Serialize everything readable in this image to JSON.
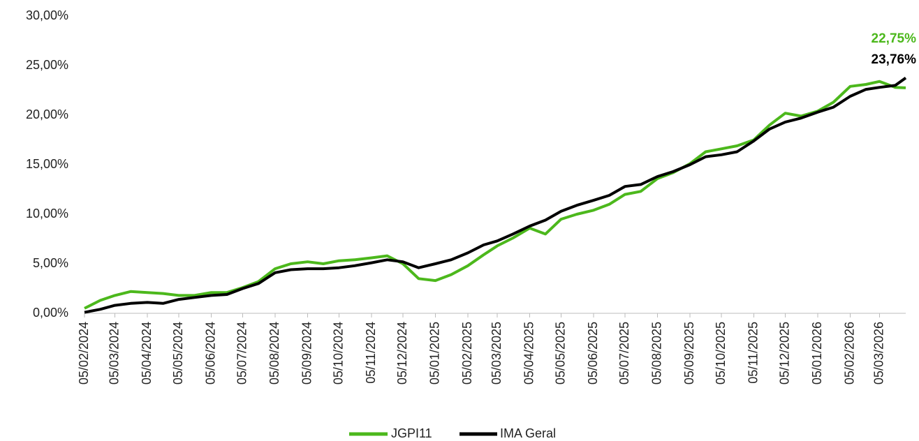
{
  "chart_data": {
    "type": "line",
    "x": [
      "05/02/2024",
      "20/02/2024",
      "05/03/2024",
      "20/03/2024",
      "05/04/2024",
      "20/04/2024",
      "05/05/2024",
      "20/05/2024",
      "05/06/2024",
      "20/06/2024",
      "05/07/2024",
      "20/07/2024",
      "05/08/2024",
      "20/08/2024",
      "05/09/2024",
      "20/09/2024",
      "05/10/2024",
      "20/10/2024",
      "05/11/2024",
      "20/11/2024",
      "05/12/2024",
      "20/12/2024",
      "05/01/2025",
      "20/01/2025",
      "05/02/2025",
      "20/02/2025",
      "05/03/2025",
      "20/03/2025",
      "05/04/2025",
      "20/04/2025",
      "05/05/2025",
      "20/05/2025",
      "05/06/2025",
      "20/06/2025",
      "05/07/2025",
      "20/07/2025",
      "05/08/2025",
      "20/08/2025",
      "05/09/2025",
      "20/09/2025",
      "05/10/2025",
      "20/10/2025",
      "05/11/2025",
      "20/11/2025",
      "05/12/2025",
      "20/12/2025",
      "05/01/2026",
      "20/01/2026",
      "05/02/2026",
      "20/02/2026",
      "05/03/2026",
      "20/03/2026",
      "30/03/2026"
    ],
    "series": [
      {
        "name": "JGPI11",
        "color": "#4cb81c",
        "values": [
          0.5,
          1.3,
          1.8,
          2.2,
          2.1,
          2.0,
          1.8,
          1.8,
          2.1,
          2.1,
          2.6,
          3.2,
          4.5,
          5.0,
          5.2,
          5.0,
          5.3,
          5.4,
          5.6,
          5.8,
          5.0,
          3.5,
          3.3,
          3.9,
          4.8,
          5.9,
          6.8,
          7.6,
          8.6,
          8.0,
          9.5,
          10.0,
          10.4,
          11.0,
          12.0,
          12.3,
          13.6,
          14.2,
          15.1,
          16.3,
          16.6,
          16.9,
          17.5,
          19.0,
          20.2,
          19.9,
          20.4,
          21.3,
          22.9,
          23.1,
          23.4,
          22.8,
          22.75
        ],
        "value_labels": [
          null,
          null,
          null,
          null,
          null,
          null,
          null,
          null,
          null,
          null,
          null,
          null,
          null,
          null,
          null,
          null,
          null,
          null,
          null,
          null,
          null,
          null,
          null,
          null,
          null,
          null,
          null,
          null,
          null,
          null,
          null,
          null,
          null,
          null,
          null,
          null,
          null,
          null,
          null,
          null,
          null,
          null,
          null,
          null,
          null,
          null,
          null,
          null,
          null,
          null,
          null,
          null,
          "22,75%"
        ]
      },
      {
        "name": "IMA Geral",
        "color": "#000000",
        "values": [
          0.1,
          0.4,
          0.8,
          1.0,
          1.1,
          1.0,
          1.4,
          1.6,
          1.8,
          1.9,
          2.5,
          3.0,
          4.1,
          4.4,
          4.5,
          4.5,
          4.6,
          4.8,
          5.1,
          5.4,
          5.2,
          4.6,
          5.0,
          5.4,
          6.1,
          6.9,
          7.3,
          8.0,
          8.8,
          9.4,
          10.3,
          10.9,
          11.4,
          11.9,
          12.8,
          13.0,
          13.8,
          14.3,
          15.0,
          15.8,
          16.0,
          16.3,
          17.4,
          18.6,
          19.3,
          19.7,
          20.3,
          20.8,
          21.9,
          22.6,
          22.8,
          23.0,
          23.76
        ],
        "value_labels": [
          null,
          null,
          null,
          null,
          null,
          null,
          null,
          null,
          null,
          null,
          null,
          null,
          null,
          null,
          null,
          null,
          null,
          null,
          null,
          null,
          null,
          null,
          null,
          null,
          null,
          null,
          null,
          null,
          null,
          null,
          null,
          null,
          null,
          null,
          null,
          null,
          null,
          null,
          null,
          null,
          null,
          null,
          null,
          null,
          null,
          null,
          null,
          null,
          null,
          null,
          null,
          null,
          "23,76%"
        ]
      }
    ],
    "xlim": [
      "05/02/2024",
      "30/03/2026"
    ],
    "xticks": [
      "05/02/2024",
      "05/03/2024",
      "05/04/2024",
      "05/05/2024",
      "05/06/2024",
      "05/07/2024",
      "05/08/2024",
      "05/09/2024",
      "05/10/2024",
      "05/11/2024",
      "05/12/2024",
      "05/01/2025",
      "05/02/2025",
      "05/03/2025",
      "05/04/2025",
      "05/05/2025",
      "05/06/2025",
      "05/07/2025",
      "05/08/2025",
      "05/09/2025",
      "05/10/2025",
      "05/11/2025",
      "05/12/2025",
      "05/01/2026",
      "05/02/2026",
      "05/03/2026"
    ],
    "ylim": [
      0,
      30
    ],
    "yticks": [
      {
        "value": 0,
        "label": "0,00%"
      },
      {
        "value": 5,
        "label": "5,00%"
      },
      {
        "value": 10,
        "label": "10,00%"
      },
      {
        "value": 15,
        "label": "15,00%"
      },
      {
        "value": 20,
        "label": "20,00%"
      },
      {
        "value": 25,
        "label": "25,00%"
      },
      {
        "value": 30,
        "label": "30,00%"
      }
    ],
    "legend": "bottom"
  }
}
